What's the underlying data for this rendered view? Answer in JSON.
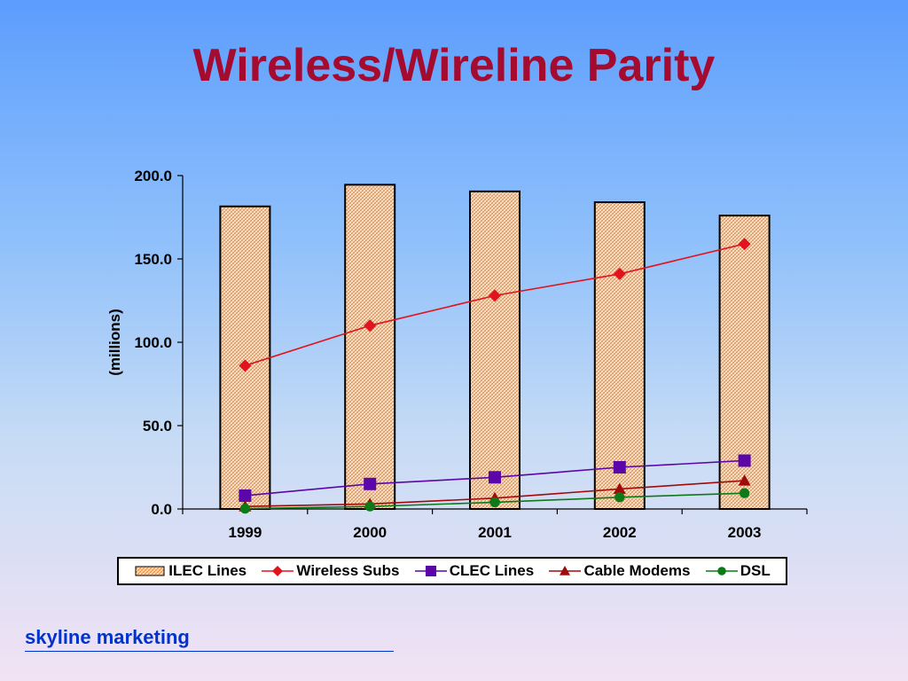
{
  "slide": {
    "title": "Wireless/Wireline Parity",
    "footer": "skyline marketing"
  },
  "chart_data": {
    "type": "bar",
    "categories": [
      "1999",
      "2000",
      "2001",
      "2002",
      "2003"
    ],
    "ylabel": "(millions)",
    "ylim": [
      0,
      200
    ],
    "yticks": [
      "0.0",
      "50.0",
      "100.0",
      "150.0",
      "200.0"
    ],
    "grid": false,
    "legend_position": "bottom",
    "bar_series": {
      "name": "ILEC Lines",
      "values": [
        181.5,
        194.5,
        190.5,
        184,
        176
      ],
      "color": "#f6b887"
    },
    "line_series": [
      {
        "name": "Wireless Subs",
        "values": [
          86,
          110,
          128,
          141,
          159
        ],
        "color": "#e1141e",
        "marker": "diamond"
      },
      {
        "name": "CLEC Lines",
        "values": [
          8,
          15,
          19,
          25,
          29
        ],
        "color": "#5b06a8",
        "marker": "square"
      },
      {
        "name": "Cable Modems",
        "values": [
          1.5,
          3,
          6.5,
          12,
          17
        ],
        "color": "#a00a0a",
        "marker": "triangle"
      },
      {
        "name": "DSL",
        "values": [
          0.2,
          1.5,
          4,
          7,
          9.5
        ],
        "color": "#0b7a17",
        "marker": "circle"
      }
    ]
  }
}
